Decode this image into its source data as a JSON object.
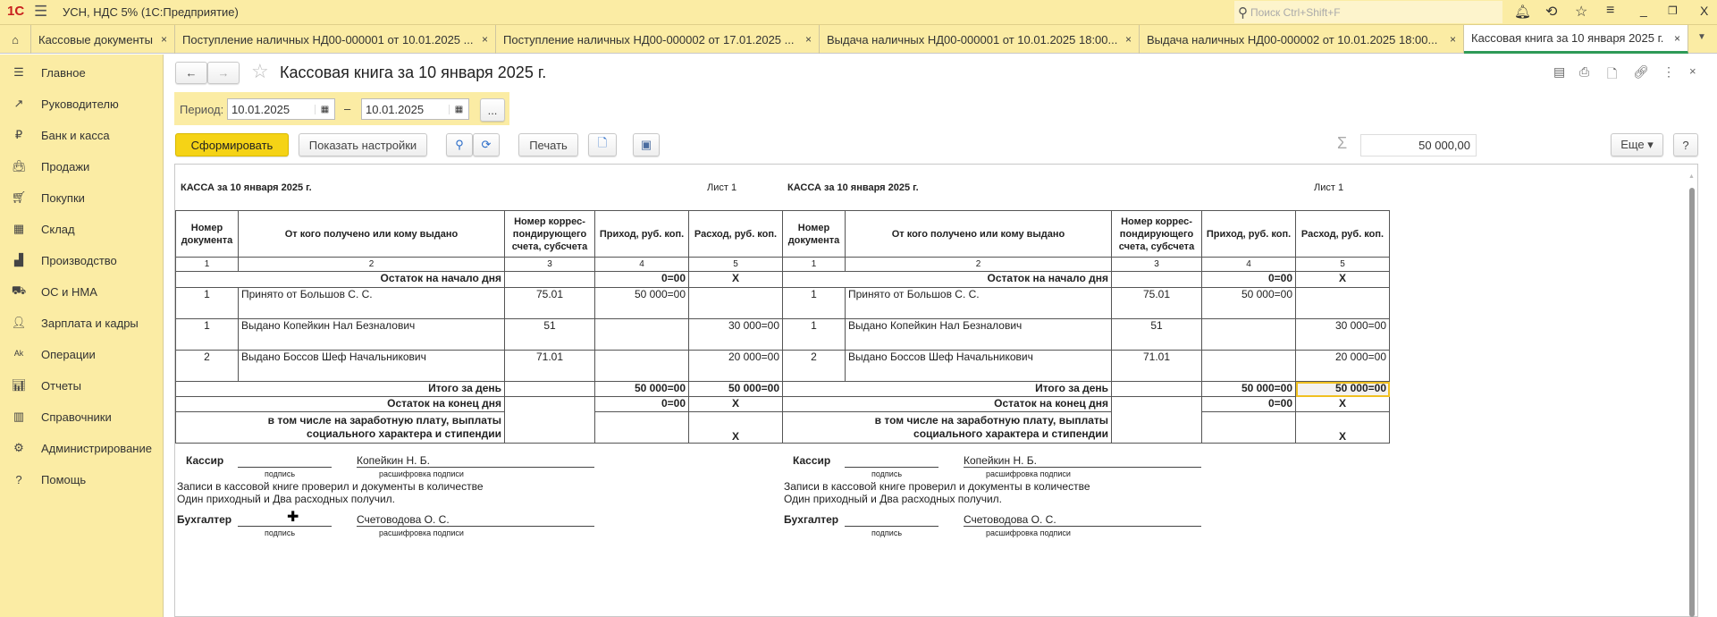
{
  "app": {
    "title": "УСН, НДС 5%  (1С:Предприятие)",
    "search_placeholder": "Поиск Ctrl+Shift+F"
  },
  "tabs": [
    {
      "label": "Кассовые документы",
      "active": false
    },
    {
      "label": "Поступление наличных НД00-000001 от 10.01.2025 ...",
      "active": false
    },
    {
      "label": "Поступление наличных НД00-000002 от 17.01.2025 ...",
      "active": false
    },
    {
      "label": "Выдача наличных НД00-000001 от 10.01.2025 18:00...",
      "active": false
    },
    {
      "label": "Выдача наличных НД00-000002 от 10.01.2025 18:00...",
      "active": false
    },
    {
      "label": "Кассовая книга за 10 января 2025 г.",
      "active": true
    }
  ],
  "sidebar": {
    "items": [
      {
        "label": "Главное",
        "icon": "menu-icon"
      },
      {
        "label": "Руководителю",
        "icon": "trend-icon"
      },
      {
        "label": "Банк и касса",
        "icon": "ruble-icon"
      },
      {
        "label": "Продажи",
        "icon": "bag-icon"
      },
      {
        "label": "Покупки",
        "icon": "cart-icon"
      },
      {
        "label": "Склад",
        "icon": "warehouse-icon"
      },
      {
        "label": "Производство",
        "icon": "factory-icon"
      },
      {
        "label": "ОС и НМА",
        "icon": "truck-icon"
      },
      {
        "label": "Зарплата и кадры",
        "icon": "person-icon"
      },
      {
        "label": "Операции",
        "icon": "dt-kt-icon"
      },
      {
        "label": "Отчеты",
        "icon": "bar-chart-icon"
      },
      {
        "label": "Справочники",
        "icon": "books-icon"
      },
      {
        "label": "Администрирование",
        "icon": "gear-icon"
      },
      {
        "label": "Помощь",
        "icon": "help-icon"
      }
    ]
  },
  "form": {
    "title": "Кассовая книга за 10 января 2025 г.",
    "period_label": "Период:",
    "date_from": "10.01.2025",
    "date_to": "10.01.2025",
    "dash": "–",
    "ellipsis": "...",
    "generate": "Сформировать",
    "show_settings": "Показать настройки",
    "print": "Печать",
    "sum": "50 000,00",
    "more": "Еще ▾",
    "help": "?",
    "accent": "#f5d316"
  },
  "report": {
    "heading": "КАССА за 10 января 2025 г.",
    "sheet": "Лист 1",
    "headers": [
      "Номер документа",
      "От кого получено или кому выдано",
      "Номер коррес-пондирующего счета, субсчета",
      "Приход, руб. коп.",
      "Расход, руб. коп."
    ],
    "col_numbers": [
      "1",
      "2",
      "3",
      "4",
      "5"
    ],
    "opening": {
      "label": "Остаток на начало дня",
      "income": "0=00",
      "expense": "X"
    },
    "rows": [
      {
        "doc": "1",
        "who": "Принято от Большов С. С.",
        "account": "75.01",
        "income": "50 000=00",
        "expense": ""
      },
      {
        "doc": "1",
        "who": "Выдано Копейкин Нал Безналович",
        "account": "51",
        "income": "",
        "expense": "30 000=00"
      },
      {
        "doc": "2",
        "who": "Выдано Боссов Шеф Начальникович",
        "account": "71.01",
        "income": "",
        "expense": "20 000=00"
      }
    ],
    "total": {
      "label": "Итого за день",
      "income": "50 000=00",
      "expense": "50 000=00"
    },
    "closing": {
      "label": "Остаток на конец  дня",
      "income": "0=00",
      "expense": "X"
    },
    "salary": {
      "label1": "в том числе на заработную плату, выплаты",
      "label2": "социального характера и стипендии",
      "expense": "X"
    },
    "cashier_label": "Кассир",
    "cashier_name": "Копейкин Н. Б.",
    "signature_caption": "подпись",
    "decode_caption": "расшифровка подписи",
    "checked_line1": "Записи в кассовой книге проверил и документы в количестве",
    "checked_line2": "Один приходный и Два расходных получил.",
    "accountant_label": "Бухгалтер",
    "accountant_name": "Счетоводова О. С."
  }
}
